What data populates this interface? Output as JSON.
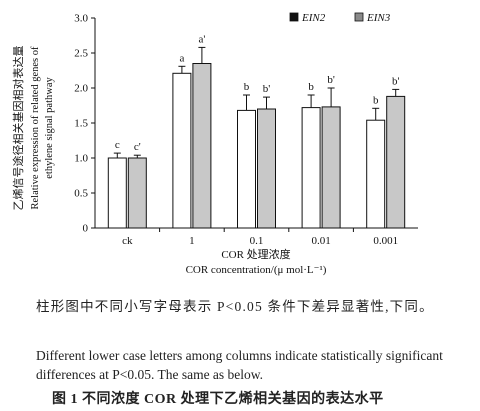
{
  "chart_data": {
    "type": "bar",
    "categories": [
      "ck",
      "1",
      "0.1",
      "0.01",
      "0.001"
    ],
    "series": [
      {
        "name": "EIN2",
        "fill": "#ffffff",
        "values": [
          1.0,
          2.21,
          1.68,
          1.72,
          1.54
        ],
        "errors": [
          0.07,
          0.1,
          0.22,
          0.18,
          0.17
        ],
        "letters": [
          "c",
          "a",
          "b",
          "b",
          "b"
        ]
      },
      {
        "name": "EIN3",
        "fill": "#c8c8c8",
        "values": [
          1.0,
          2.35,
          1.7,
          1.73,
          1.88
        ],
        "errors": [
          0.04,
          0.23,
          0.17,
          0.27,
          0.1
        ],
        "letters": [
          "c'",
          "a'",
          "b'",
          "b'",
          "b'"
        ]
      }
    ],
    "ylim": [
      0,
      3.0
    ],
    "yticks": [
      "0",
      "0.5",
      "1.0",
      "1.5",
      "2.0",
      "2.5",
      "3.0"
    ],
    "ylabel_cn": "乙烯信号途径相关基因相对表达量",
    "ylabel_en_1": "Relative expression of related genes of",
    "ylabel_en_2": "ethylene signal pathway",
    "xlabel_cn": "COR 处理浓度",
    "xlabel_en": "COR concentration/(μ mol·L⁻¹)",
    "legend_position": "top-right",
    "grid": false
  },
  "caption": {
    "note_cn": "柱形图中不同小写字母表示 P<0.05 条件下差异显著性,下同。",
    "note_en": "Different lower case letters among columns indicate statistically significant differences at P<0.05. The same as below.",
    "figure_title": "图 1   不同浓度 COR 处理下乙烯相关基因的表达水平"
  }
}
